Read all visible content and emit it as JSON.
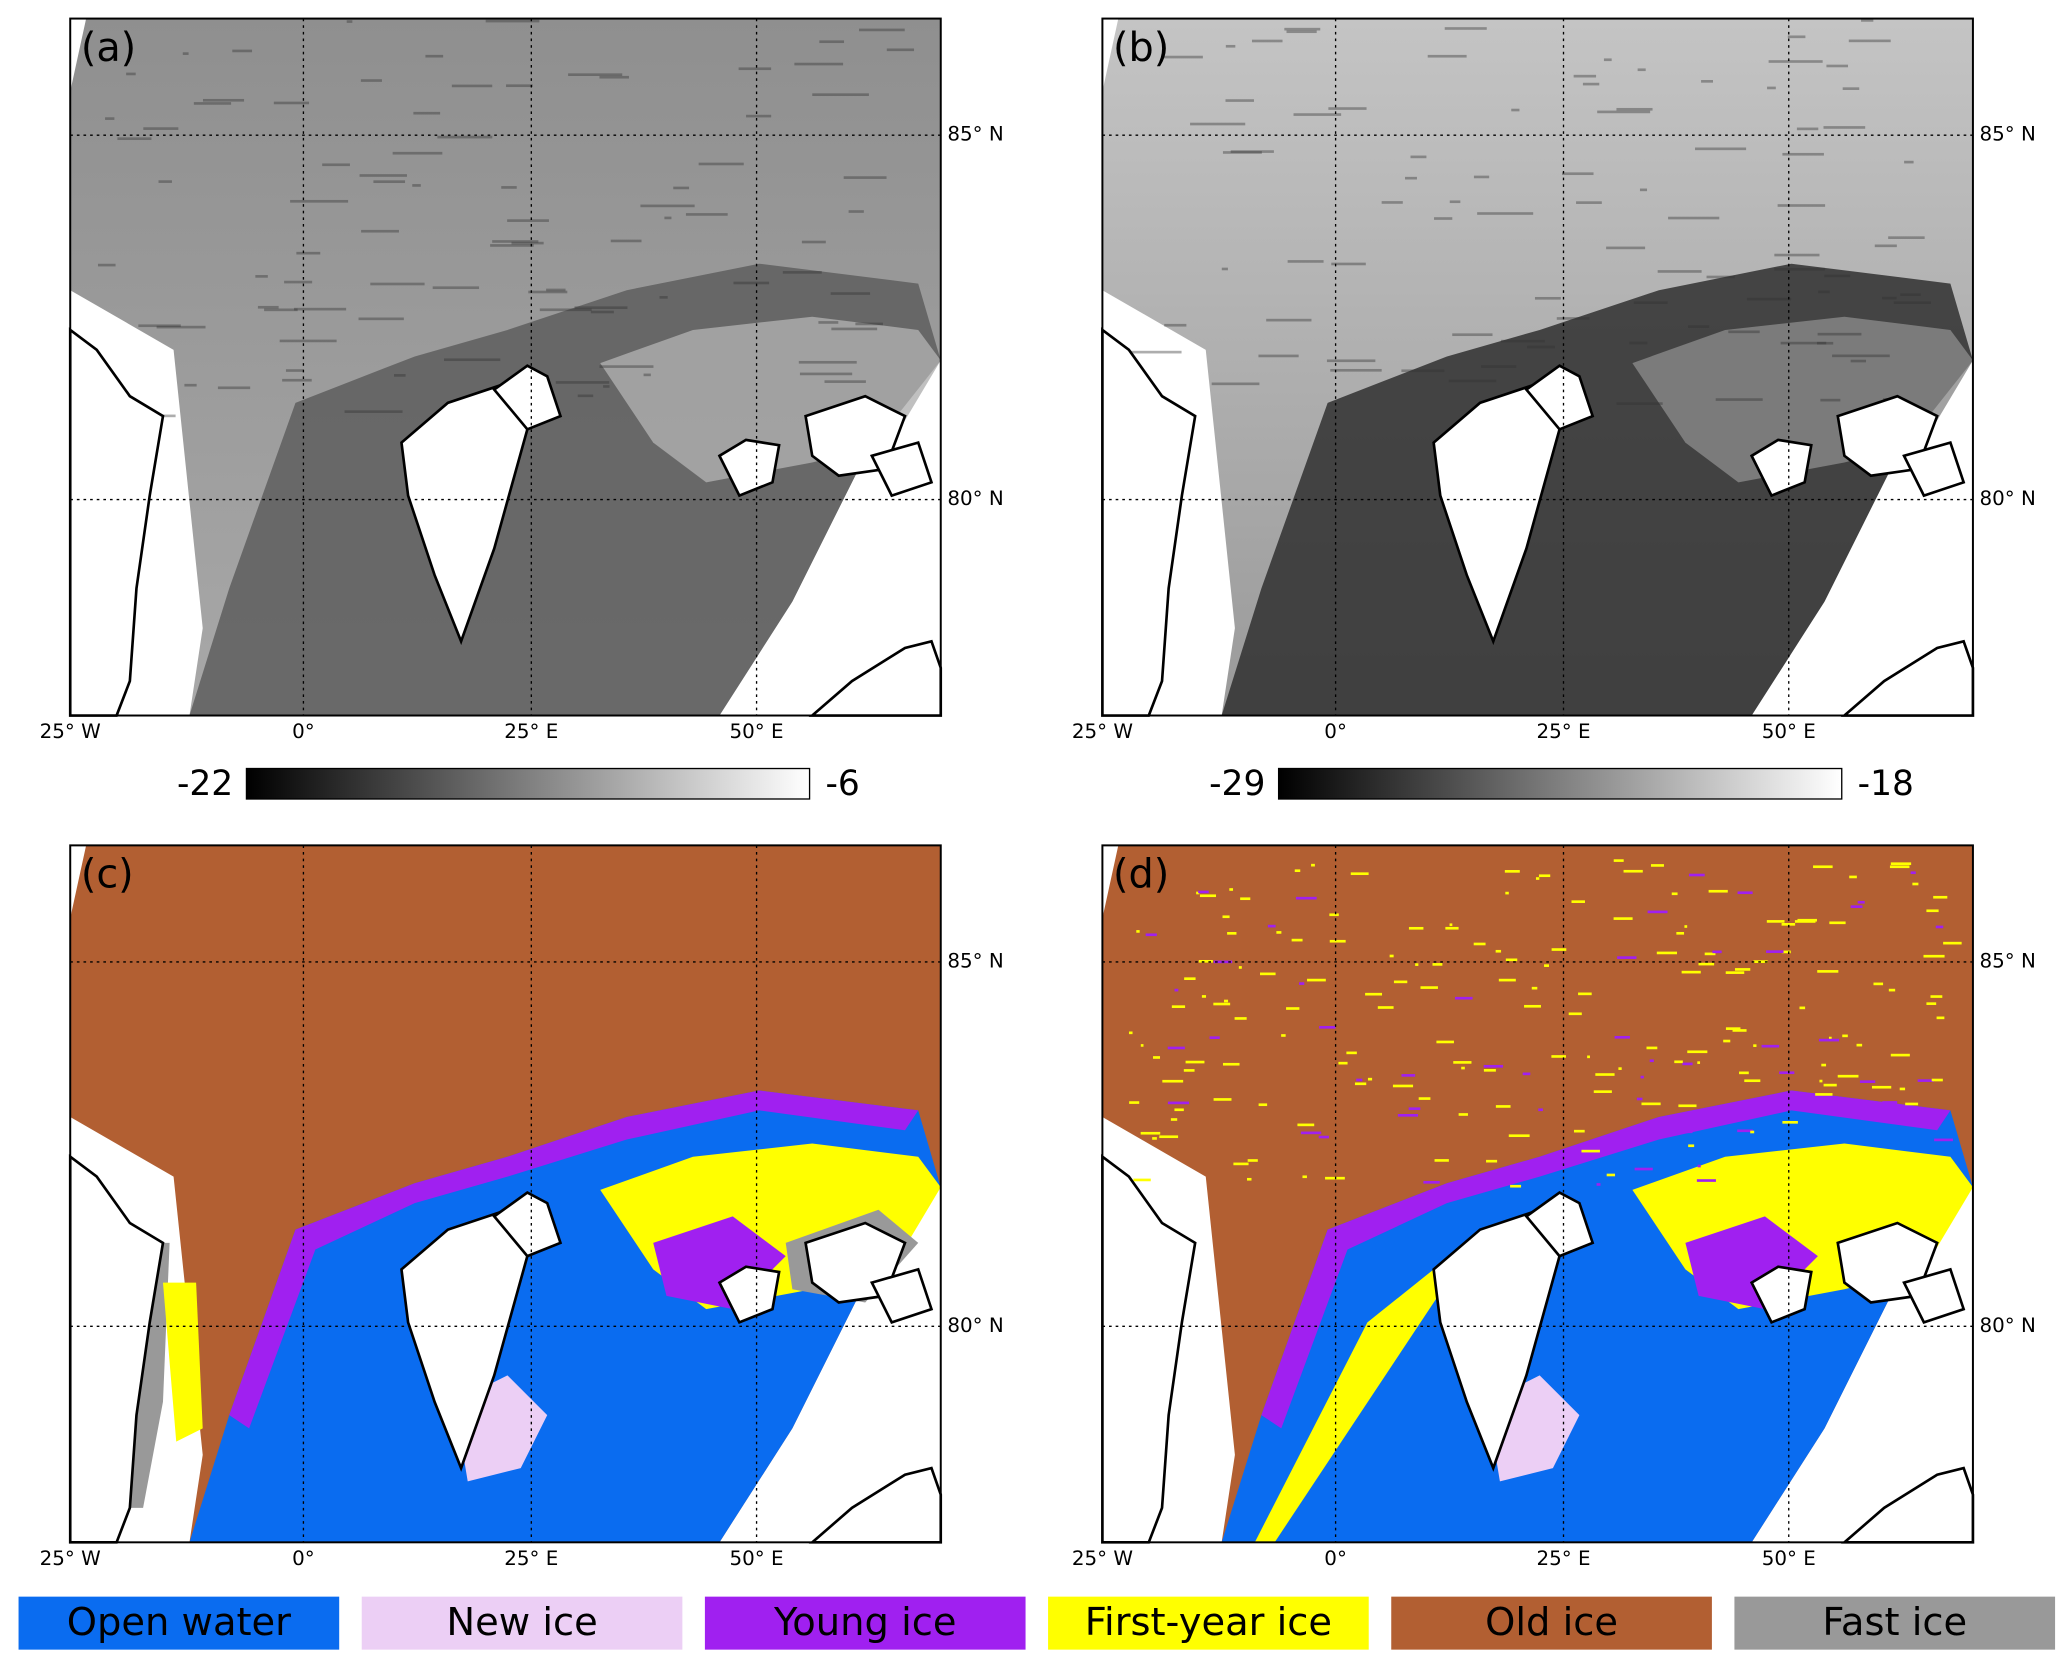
{
  "panels": [
    {
      "label": "(a)",
      "lat_labels": [
        "85° N",
        "80° N"
      ],
      "lon_labels": [
        "25° W",
        "0°",
        "25° E",
        "50° E"
      ],
      "colorbar": {
        "min": -22,
        "max": -6
      }
    },
    {
      "label": "(b)",
      "lat_labels": [
        "85° N",
        "80° N"
      ],
      "lon_labels": [
        "25° W",
        "0°",
        "25° E",
        "50° E"
      ],
      "colorbar": {
        "min": -29,
        "max": -18
      }
    },
    {
      "label": "(c)",
      "lat_labels": [
        "85° N",
        "80° N"
      ],
      "lon_labels": [
        "25° W",
        "0°",
        "25° E",
        "50° E"
      ]
    },
    {
      "label": "(d)",
      "lat_labels": [
        "85° N",
        "80° N"
      ],
      "lon_labels": [
        "25° W",
        "0°",
        "25° E",
        "50° E"
      ]
    }
  ],
  "legend": [
    {
      "label": "Open water",
      "color": "#0a6cf0"
    },
    {
      "label": "New ice",
      "color": "#eccff5"
    },
    {
      "label": "Young ice",
      "color": "#a020f0"
    },
    {
      "label": "First-year ice",
      "color": "#ffff00"
    },
    {
      "label": "Old ice",
      "color": "#b25f32"
    },
    {
      "label": "Fast ice",
      "color": "#999999"
    }
  ]
}
